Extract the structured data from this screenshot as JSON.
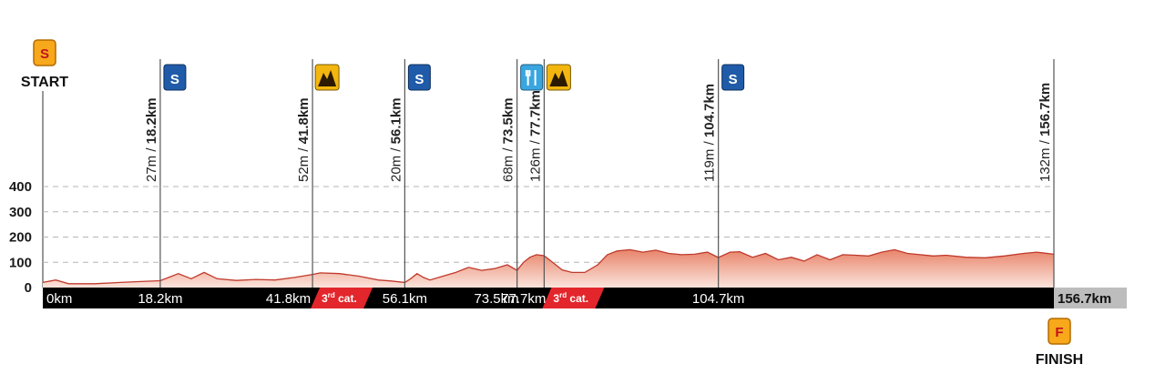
{
  "start_label": "START",
  "finish_label": "FINISH",
  "start_badge": "S",
  "finish_badge": "F",
  "colors": {
    "elevation_fill_top": "#e8846a",
    "elevation_fill_bottom": "#fbe4dc",
    "elevation_line": "#c0392b",
    "km_bar": "#000000",
    "category_badge": "#e2262c",
    "sprint_icon": "#1f5ba8",
    "climb_icon": "#f3b60f",
    "feed_icon": "#3aa6e0",
    "start_finish_icon": "#f7a81b",
    "final_box": "#bdbdbd"
  },
  "waypoints": [
    {
      "elevation_text": "27m / ",
      "km_text": "18.2km",
      "icon": "sprint-icon"
    },
    {
      "elevation_text": "52m / ",
      "km_text": "41.8km",
      "icon": "mountain-climb-icon"
    },
    {
      "elevation_text": "20m / ",
      "km_text": "56.1km",
      "icon": "sprint-icon"
    },
    {
      "elevation_text": "68m / ",
      "km_text": "73.5km",
      "icon": "feed-zone-icon"
    },
    {
      "elevation_text": "126m / ",
      "km_text": "77.7km",
      "icon": "mountain-climb-icon"
    },
    {
      "elevation_text": "119m / ",
      "km_text": "104.7km",
      "icon": "sprint-icon"
    },
    {
      "elevation_text": "132m / ",
      "km_text": "156.7km",
      "icon": ""
    }
  ],
  "km_bar_labels": [
    "0km",
    "18.2km",
    "41.8km",
    "56.1km",
    "73.5km",
    "77.7km",
    "104.7km"
  ],
  "final_distance": "156.7km",
  "category_badges": [
    {
      "label": "3",
      "suffix": "rd",
      "rest": " cat.",
      "km": 41.8
    },
    {
      "label": "3",
      "suffix": "rd",
      "rest": " cat.",
      "km": 77.7
    }
  ],
  "chart_data": {
    "type": "area",
    "title": "",
    "xlabel": "",
    "ylabel": "",
    "x_unit": "km",
    "y_unit": "m",
    "xlim": [
      0,
      156.7
    ],
    "ylim": [
      0,
      400
    ],
    "yticks": [
      0,
      100,
      200,
      300,
      400
    ],
    "grid": true,
    "x": [
      0,
      2,
      4,
      8,
      12,
      16,
      18.2,
      19.5,
      21,
      23,
      25,
      27,
      30,
      33,
      36,
      39,
      41.8,
      43,
      46,
      49,
      52,
      54,
      56.1,
      57,
      58,
      59,
      60,
      62,
      64,
      66,
      68,
      70,
      72,
      73.5,
      74.5,
      75.5,
      76.5,
      77.7,
      79,
      80.5,
      82,
      84,
      86,
      87.5,
      89,
      91,
      93,
      95,
      97,
      99,
      101,
      103,
      104.7,
      106.5,
      108,
      110,
      112,
      114,
      116,
      118,
      120,
      122,
      124,
      126,
      128,
      130,
      132,
      134,
      136,
      138,
      140,
      143,
      146,
      149,
      152,
      154,
      156.7
    ],
    "y": [
      20,
      30,
      15,
      15,
      20,
      25,
      27,
      40,
      55,
      35,
      60,
      35,
      28,
      32,
      30,
      40,
      52,
      58,
      55,
      45,
      30,
      26,
      20,
      35,
      55,
      40,
      30,
      45,
      60,
      80,
      68,
      75,
      90,
      68,
      100,
      120,
      130,
      126,
      100,
      70,
      60,
      60,
      90,
      130,
      145,
      150,
      140,
      148,
      135,
      130,
      132,
      140,
      119,
      140,
      142,
      120,
      135,
      110,
      120,
      105,
      130,
      110,
      130,
      128,
      125,
      140,
      150,
      135,
      130,
      125,
      128,
      120,
      118,
      125,
      135,
      140,
      132
    ],
    "markers": [
      18.2,
      41.8,
      56.1,
      73.5,
      77.7,
      104.7,
      156.7
    ]
  }
}
